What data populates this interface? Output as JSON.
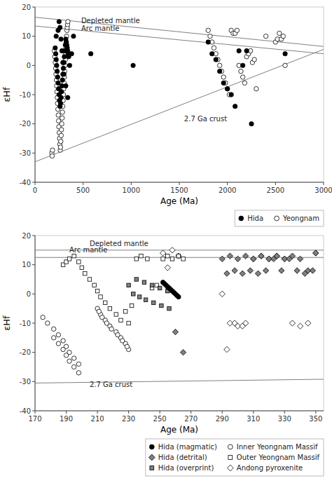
{
  "chart_data": [
    {
      "type": "scatter",
      "xlabel": "Age (Ma)",
      "ylabel": "εHf",
      "xlim": [
        0,
        3000
      ],
      "ylim": [
        -40,
        20
      ],
      "xticks": [
        0,
        500,
        1000,
        1500,
        2000,
        2500,
        3000
      ],
      "yticks": [
        -40,
        -30,
        -20,
        -10,
        0,
        10,
        20
      ],
      "grid": false,
      "legend": "lower right",
      "series": [
        {
          "type": "line",
          "color": "gray",
          "x": [
            0,
            3000
          ],
          "values": [
            16.5,
            6.5
          ]
        },
        {
          "type": "line",
          "color": "gray",
          "x": [
            0,
            3000
          ],
          "values": [
            13.5,
            4.0
          ]
        },
        {
          "type": "line",
          "color": "gray",
          "x": [
            0,
            3000
          ],
          "values": [
            -33,
            5.5
          ]
        },
        {
          "name": "Hida",
          "type": "scatter",
          "marker": "circle",
          "color": "black",
          "x": [
            220,
            240,
            250,
            260,
            270,
            280,
            290,
            300,
            320,
            340,
            360,
            380,
            400,
            210,
            215,
            220,
            225,
            230,
            235,
            240,
            245,
            250,
            255,
            260,
            265,
            270,
            275,
            280,
            285,
            290,
            295,
            300,
            305,
            310,
            315,
            320,
            325,
            330,
            335,
            340,
            345,
            350,
            1800,
            1840,
            1880,
            1920,
            1960,
            2000,
            2040,
            2080,
            2120,
            2160,
            2200,
            2250,
            2600,
            580,
            1020
          ],
          "values": [
            10,
            12,
            15,
            13,
            9,
            5,
            1,
            -3,
            -7,
            -11,
            0,
            4,
            10,
            6,
            4,
            2,
            0,
            -2,
            -4,
            -6,
            -8,
            -10,
            -12,
            -14,
            -13,
            -11,
            -9,
            -7,
            -5,
            -3,
            -1,
            1,
            3,
            5,
            7,
            9,
            8,
            7,
            6,
            5,
            4,
            3,
            8,
            4,
            2,
            -2,
            -6,
            -8,
            -10,
            -14,
            5,
            0,
            5,
            -20,
            4,
            4,
            0
          ]
        },
        {
          "name": "Yeongnam",
          "type": "scatter",
          "marker": "circle",
          "color": "white",
          "x": [
            200,
            205,
            210,
            215,
            218,
            222,
            225,
            228,
            232,
            235,
            238,
            242,
            245,
            248,
            252,
            255,
            258,
            262,
            265,
            268,
            272,
            275,
            278,
            282,
            285,
            288,
            292,
            295,
            298,
            302,
            305,
            308,
            312,
            315,
            318,
            322,
            325,
            328,
            332,
            335,
            338,
            342,
            1800,
            1820,
            1840,
            1860,
            1880,
            1900,
            1920,
            1940,
            1960,
            1980,
            2000,
            2020,
            2040,
            2060,
            2080,
            2100,
            2120,
            2140,
            2160,
            2180,
            2200,
            2220,
            2240,
            2260,
            2280,
            2300,
            2400,
            2500,
            2520,
            2540,
            2560,
            2580,
            2600,
            175,
            178,
            182
          ],
          "values": [
            5,
            3,
            1,
            -1,
            -3,
            -5,
            -7,
            -9,
            -11,
            -13,
            -15,
            -17,
            -19,
            -21,
            -23,
            -25,
            -27,
            -29,
            -28,
            -26,
            -24,
            -22,
            -20,
            -18,
            -16,
            -14,
            -12,
            -10,
            -8,
            -6,
            -4,
            -2,
            0,
            2,
            4,
            6,
            8,
            10,
            12,
            13,
            14,
            15,
            12,
            10,
            8,
            6,
            4,
            2,
            0,
            -2,
            -4,
            -6,
            -8,
            -10,
            12,
            11,
            11,
            12,
            0,
            -2,
            -4,
            -6,
            3,
            4,
            5,
            1,
            2,
            -8,
            10,
            8,
            9,
            11,
            9,
            10,
            0,
            -30,
            -31,
            -29
          ]
        }
      ],
      "annotations": [
        {
          "text": "Depleted mantle",
          "x": 480,
          "y": 14.5
        },
        {
          "text": "Arc mantle",
          "x": 480,
          "y": 11.8
        },
        {
          "text": "2.7 Ga crust",
          "x": 1550,
          "y": -19
        }
      ]
    },
    {
      "type": "scatter",
      "xlabel": "Age (Ma)",
      "ylabel": "εHf",
      "xlim": [
        170,
        355
      ],
      "ylim": [
        -40,
        20
      ],
      "xticks": [
        170,
        190,
        210,
        230,
        250,
        270,
        290,
        310,
        330,
        350
      ],
      "yticks": [
        -40,
        -30,
        -20,
        -10,
        0,
        10,
        20
      ],
      "grid": false,
      "legend": "lower right",
      "series": [
        {
          "type": "hline",
          "color": "gray",
          "values": [
            15.0
          ]
        },
        {
          "type": "hline",
          "color": "gray",
          "values": [
            12.5
          ]
        },
        {
          "type": "line",
          "color": "gray",
          "x": [
            170,
            355
          ],
          "values": [
            -30.5,
            -29.2
          ]
        },
        {
          "name": "Hida (magmatic)",
          "type": "scatter",
          "marker": "circle",
          "color": "black",
          "x": [
            252,
            254,
            256,
            258,
            260,
            262,
            253,
            255,
            257,
            259,
            261
          ],
          "values": [
            4,
            3,
            2,
            1,
            0,
            -1,
            3.5,
            2.5,
            1.5,
            0.5,
            -0.5
          ]
        },
        {
          "name": "Hida (detrital)",
          "type": "scatter",
          "marker": "diamond",
          "color": "gray",
          "x": [
            290,
            295,
            300,
            305,
            310,
            315,
            320,
            325,
            330,
            335,
            340,
            345,
            350,
            293,
            298,
            303,
            308,
            313,
            318,
            323,
            328,
            333,
            338,
            343,
            348,
            260,
            265
          ],
          "values": [
            12,
            13,
            12,
            13,
            12,
            13,
            12,
            13,
            12,
            13,
            12,
            8,
            14,
            7,
            8,
            7,
            8,
            7,
            8,
            12,
            8,
            12,
            8,
            7,
            8,
            -13,
            -20
          ]
        },
        {
          "name": "Hida (overprint)",
          "type": "scatter",
          "marker": "square",
          "color": "gray",
          "x": [
            230,
            235,
            240,
            245,
            250,
            255,
            233,
            237,
            241,
            246,
            251,
            256
          ],
          "values": [
            3,
            5,
            4,
            3,
            2,
            1,
            0,
            -1,
            -2,
            -3,
            -4,
            -5
          ]
        },
        {
          "name": "Inner Yeongnam Massif",
          "type": "scatter",
          "marker": "circle",
          "color": "white",
          "x": [
            175,
            178,
            182,
            185,
            188,
            190,
            192,
            195,
            198,
            182,
            185,
            188,
            190,
            192,
            195,
            198,
            210,
            212,
            215,
            218,
            222,
            225,
            228,
            230,
            211,
            213,
            216,
            219,
            223,
            226,
            229
          ],
          "values": [
            -8,
            -10,
            -12,
            -14,
            -16,
            -18,
            -20,
            -22,
            -24,
            -15,
            -17,
            -19,
            -21,
            -23,
            -25,
            -27,
            -5,
            -7,
            -9,
            -11,
            -13,
            -15,
            -17,
            -19,
            -6,
            -8,
            -10,
            -12,
            -14,
            -16,
            -18
          ]
        },
        {
          "name": "Outer Yeongnam Massif",
          "type": "scatter",
          "marker": "square",
          "color": "white",
          "x": [
            188,
            190,
            192,
            195,
            198,
            200,
            202,
            205,
            208,
            210,
            212,
            215,
            218,
            222,
            225,
            228,
            230,
            232,
            235,
            238,
            242,
            245,
            248,
            252,
            255,
            258,
            262,
            265
          ],
          "values": [
            10,
            11,
            12,
            13,
            11,
            9,
            7,
            5,
            3,
            1,
            -1,
            -3,
            -5,
            -7,
            -9,
            -6,
            -10,
            -4,
            12,
            13,
            12,
            2,
            3,
            12,
            13,
            12,
            13,
            12
          ]
        },
        {
          "name": "Andong pyroxenite",
          "type": "scatter",
          "marker": "diamond",
          "color": "white",
          "x": [
            252,
            255,
            258,
            262,
            290,
            295,
            300,
            305,
            310,
            315,
            320,
            325,
            330,
            335,
            340,
            345,
            350,
            293,
            298,
            303
          ],
          "values": [
            14,
            9,
            15,
            13,
            0,
            -10,
            -11,
            -10,
            12,
            13,
            12,
            13,
            12,
            -10,
            -11,
            -10,
            14,
            -19,
            -10,
            -11
          ]
        }
      ],
      "annotations": [
        {
          "text": "Depleted mantle",
          "x": 205,
          "y": 16.5
        },
        {
          "text": "Arc mantle",
          "x": 192,
          "y": 14.2
        },
        {
          "text": "2.7 Ga crust",
          "x": 205,
          "y": -31.8
        }
      ]
    }
  ]
}
